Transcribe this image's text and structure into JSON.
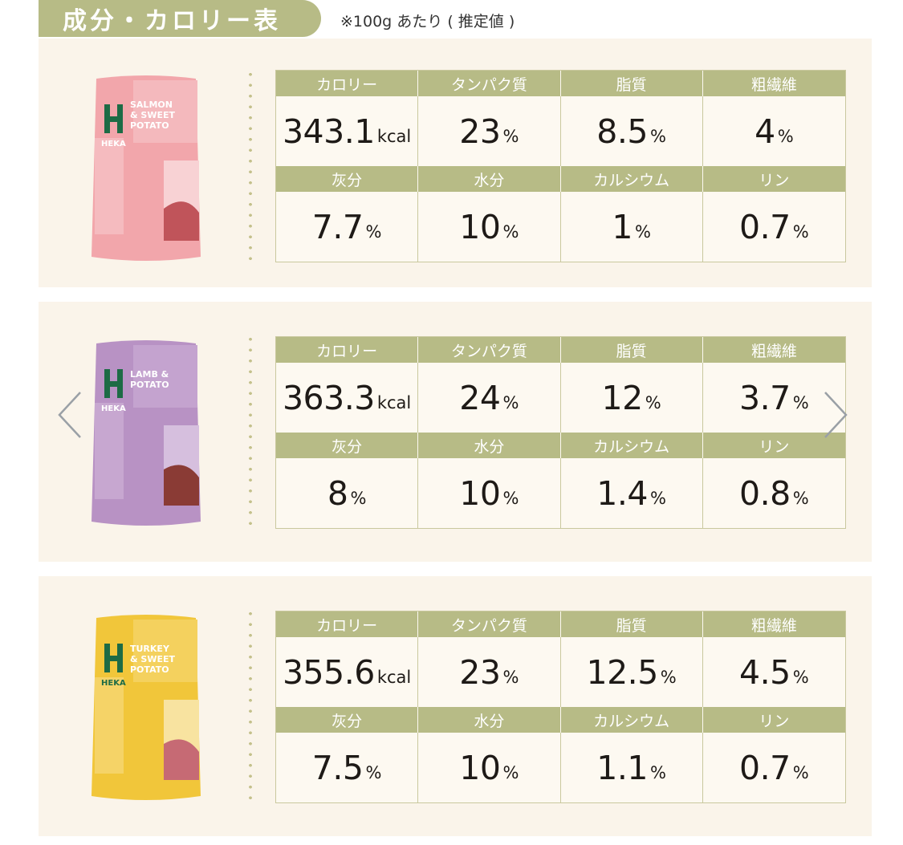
{
  "header": {
    "title": "成分・カロリー表",
    "note": "※100g あたり ( 推定値 )"
  },
  "labels": [
    "カロリー",
    "タンパク質",
    "脂質",
    "粗繊維",
    "灰分",
    "水分",
    "カルシウム",
    "リン"
  ],
  "products": [
    {
      "bag_brand": "HEKA",
      "bag_name_1": "SALMON",
      "bag_name_2": "& SWEET",
      "bag_name_3": "POTATO",
      "bag_color": "#f2a6ab",
      "values": [
        {
          "num": "343.1",
          "unit": "kcal"
        },
        {
          "num": "23",
          "unit": "%"
        },
        {
          "num": "8.5",
          "unit": "%"
        },
        {
          "num": "4",
          "unit": "%"
        },
        {
          "num": "7.7",
          "unit": "%"
        },
        {
          "num": "10",
          "unit": "%"
        },
        {
          "num": "1",
          "unit": "%"
        },
        {
          "num": "0.7",
          "unit": "%"
        }
      ]
    },
    {
      "bag_brand": "HEKA",
      "bag_name_1": "LAMB &",
      "bag_name_2": "POTATO",
      "bag_name_3": "",
      "bag_color": "#b892c4",
      "values": [
        {
          "num": "363.3",
          "unit": "kcal"
        },
        {
          "num": "24",
          "unit": "%"
        },
        {
          "num": "12",
          "unit": "%"
        },
        {
          "num": "3.7",
          "unit": "%"
        },
        {
          "num": "8",
          "unit": "%"
        },
        {
          "num": "10",
          "unit": "%"
        },
        {
          "num": "1.4",
          "unit": "%"
        },
        {
          "num": "0.8",
          "unit": "%"
        }
      ]
    },
    {
      "bag_brand": "HEKA",
      "bag_name_1": "TURKEY",
      "bag_name_2": "& SWEET",
      "bag_name_3": "POTATO",
      "bag_color": "#f1c63a",
      "values": [
        {
          "num": "355.6",
          "unit": "kcal"
        },
        {
          "num": "23",
          "unit": "%"
        },
        {
          "num": "12.5",
          "unit": "%"
        },
        {
          "num": "4.5",
          "unit": "%"
        },
        {
          "num": "7.5",
          "unit": "%"
        },
        {
          "num": "10",
          "unit": "%"
        },
        {
          "num": "1.1",
          "unit": "%"
        },
        {
          "num": "0.7",
          "unit": "%"
        }
      ]
    }
  ],
  "nav": {
    "prev_icon": "chevron-left-icon",
    "next_icon": "chevron-right-icon"
  },
  "colors": {
    "accent": "#b7bb86",
    "card_bg": "#faf4ea",
    "grid_border": "#c9c89e"
  }
}
